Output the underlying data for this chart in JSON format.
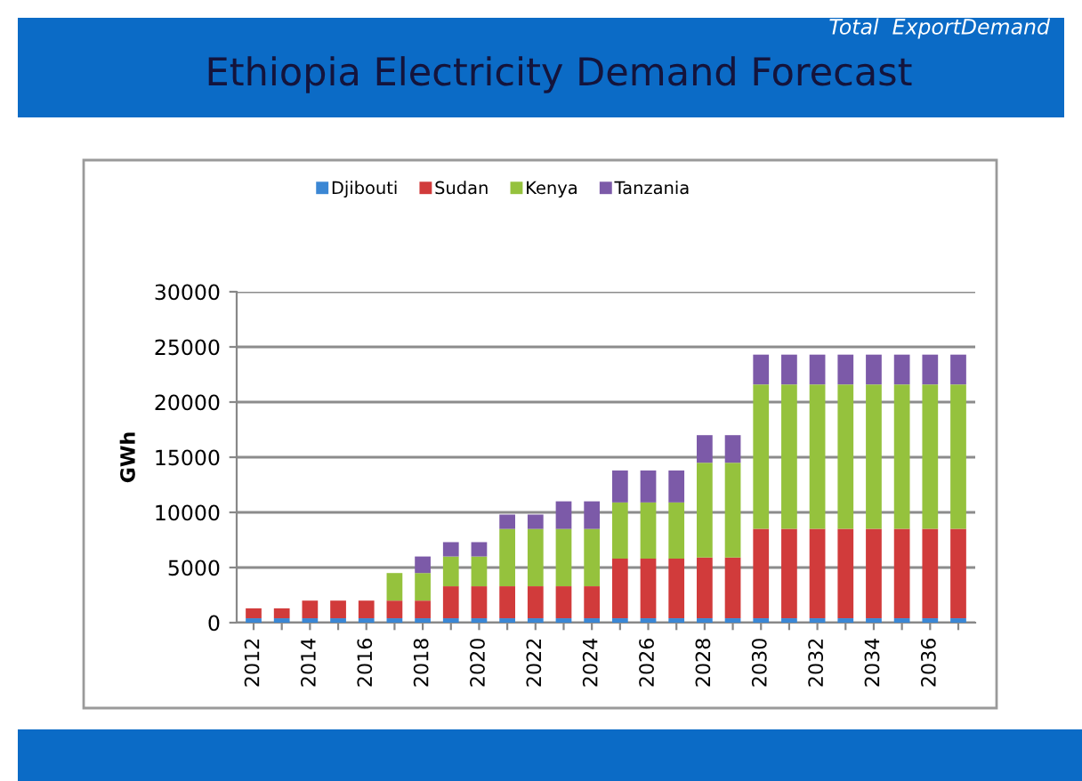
{
  "chart_data": {
    "type": "bar",
    "title": "Ethiopia Electricity Demand Forecast",
    "subtitle": "Total  ExportDemand",
    "ylabel": "GWh",
    "categories": [
      "2012",
      null,
      "2014",
      null,
      "2016",
      null,
      "2018",
      null,
      "2020",
      null,
      "2022",
      null,
      "2024",
      null,
      "2026",
      null,
      "2028",
      null,
      "2030",
      null,
      "2032",
      null,
      "2034",
      null,
      "2036",
      null
    ],
    "stacked": true,
    "series": [
      {
        "name": "Djibouti",
        "color": "#3b87d4",
        "values": [
          400,
          400,
          400,
          400,
          400,
          400,
          400,
          400,
          400,
          400,
          400,
          400,
          400,
          400,
          400,
          400,
          400,
          400,
          400,
          400,
          400,
          400,
          400,
          400,
          400,
          400
        ]
      },
      {
        "name": "Sudan",
        "color": "#d13b3b",
        "values": [
          900,
          900,
          1600,
          1600,
          1600,
          1600,
          1600,
          2900,
          2900,
          2900,
          2900,
          2900,
          2900,
          5400,
          5400,
          5400,
          5500,
          5500,
          8100,
          8100,
          8100,
          8100,
          8100,
          8100,
          8100,
          8100
        ]
      },
      {
        "name": "Kenya",
        "color": "#95c23d",
        "values": [
          0,
          0,
          0,
          0,
          0,
          2500,
          2500,
          2700,
          2700,
          5200,
          5200,
          5200,
          5200,
          5100,
          5100,
          5100,
          8600,
          8600,
          13100,
          13100,
          13100,
          13100,
          13100,
          13100,
          13100,
          13100
        ]
      },
      {
        "name": "Tanzania",
        "color": "#7c5aa8",
        "values": [
          0,
          0,
          0,
          0,
          0,
          0,
          1500,
          1300,
          1300,
          1300,
          1300,
          2500,
          2500,
          2900,
          2900,
          2900,
          2500,
          2500,
          2700,
          2700,
          2700,
          2700,
          2700,
          2700,
          2700,
          2700
        ]
      }
    ],
    "ylim": [
      0,
      30000
    ],
    "yticks": [
      0,
      5000,
      10000,
      15000,
      20000,
      25000,
      30000
    ],
    "grid": "y",
    "legend": "top"
  }
}
